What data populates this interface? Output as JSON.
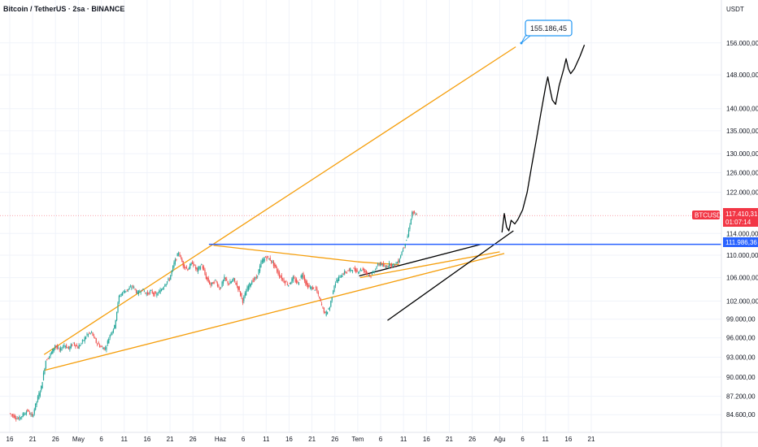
{
  "header": {
    "title": "Bitcoin / TetherUS · 2sa · BINANCE"
  },
  "axis": {
    "currency": "USDT"
  },
  "colors": {
    "up": "#26a69a",
    "down": "#ef5350",
    "orange": "#f59e0b",
    "blue": "#2962ff",
    "black": "#000000",
    "price_badge": "#f23645",
    "callout": "#2196f3",
    "grid": "#f0f3fa"
  },
  "chart_data": {
    "type": "candlestick",
    "y_scale": "log",
    "ylim": [
      83500,
      163000
    ],
    "xlim": [
      0,
      109
    ],
    "x_ticks": [
      {
        "x": 0,
        "label": "16"
      },
      {
        "x": 5,
        "label": "21"
      },
      {
        "x": 10,
        "label": "26"
      },
      {
        "x": 15,
        "label": "May"
      },
      {
        "x": 20,
        "label": "6"
      },
      {
        "x": 25,
        "label": "11"
      },
      {
        "x": 30,
        "label": "16"
      },
      {
        "x": 35,
        "label": "21"
      },
      {
        "x": 40,
        "label": "26"
      },
      {
        "x": 46,
        "label": "Haz"
      },
      {
        "x": 51,
        "label": "6"
      },
      {
        "x": 56,
        "label": "11"
      },
      {
        "x": 61,
        "label": "16"
      },
      {
        "x": 66,
        "label": "21"
      },
      {
        "x": 71,
        "label": "26"
      },
      {
        "x": 76,
        "label": "Tem"
      },
      {
        "x": 81,
        "label": "6"
      },
      {
        "x": 86,
        "label": "11"
      },
      {
        "x": 91,
        "label": "16"
      },
      {
        "x": 96,
        "label": "21"
      },
      {
        "x": 101,
        "label": "26"
      },
      {
        "x": 107,
        "label": "Ağu"
      }
    ],
    "x_ticks_extra": [
      {
        "x": 112,
        "label": "6"
      },
      {
        "x": 117,
        "label": "11"
      },
      {
        "x": 122,
        "label": "16"
      },
      {
        "x": 127,
        "label": "21"
      }
    ],
    "y_ticks": [
      "156.000,00",
      "148.000,00",
      "140.000,00",
      "135.000,00",
      "130.000,00",
      "126.000,00",
      "122.000,00",
      "114.000,00",
      "110.000,00",
      "106.000,00",
      "102.000,00",
      "99.000,00",
      "96.000,00",
      "93.000,00",
      "90.000,00",
      "87.200,00",
      "84.600,00"
    ],
    "y_tick_values": [
      156000,
      148000,
      140000,
      135000,
      130000,
      126000,
      122000,
      114000,
      110000,
      106000,
      102000,
      99000,
      96000,
      93000,
      90000,
      87200,
      84600
    ],
    "closes": [
      {
        "x": 0,
        "y": 84800
      },
      {
        "x": 2,
        "y": 84000
      },
      {
        "x": 4,
        "y": 85200
      },
      {
        "x": 5,
        "y": 84300
      },
      {
        "x": 6,
        "y": 86500
      },
      {
        "x": 7,
        "y": 88500
      },
      {
        "x": 8,
        "y": 92500
      },
      {
        "x": 9,
        "y": 93400
      },
      {
        "x": 10,
        "y": 94800
      },
      {
        "x": 11,
        "y": 94000
      },
      {
        "x": 12,
        "y": 94900
      },
      {
        "x": 13,
        "y": 94300
      },
      {
        "x": 14,
        "y": 95200
      },
      {
        "x": 15,
        "y": 94500
      },
      {
        "x": 16,
        "y": 95400
      },
      {
        "x": 17,
        "y": 96500
      },
      {
        "x": 18,
        "y": 96800
      },
      {
        "x": 19,
        "y": 95300
      },
      {
        "x": 20,
        "y": 94600
      },
      {
        "x": 21,
        "y": 94300
      },
      {
        "x": 22,
        "y": 96500
      },
      {
        "x": 23,
        "y": 97800
      },
      {
        "x": 24,
        "y": 102800
      },
      {
        "x": 25,
        "y": 103600
      },
      {
        "x": 26,
        "y": 104000
      },
      {
        "x": 27,
        "y": 104500
      },
      {
        "x": 28,
        "y": 103300
      },
      {
        "x": 29,
        "y": 104000
      },
      {
        "x": 30,
        "y": 103200
      },
      {
        "x": 31,
        "y": 103600
      },
      {
        "x": 32,
        "y": 103000
      },
      {
        "x": 33,
        "y": 103700
      },
      {
        "x": 34,
        "y": 104900
      },
      {
        "x": 35,
        "y": 105800
      },
      {
        "x": 36,
        "y": 108500
      },
      {
        "x": 37,
        "y": 110500
      },
      {
        "x": 38,
        "y": 108200
      },
      {
        "x": 39,
        "y": 107500
      },
      {
        "x": 40,
        "y": 108700
      },
      {
        "x": 41,
        "y": 107200
      },
      {
        "x": 42,
        "y": 108300
      },
      {
        "x": 43,
        "y": 106000
      },
      {
        "x": 44,
        "y": 104700
      },
      {
        "x": 45,
        "y": 105500
      },
      {
        "x": 46,
        "y": 104100
      },
      {
        "x": 47,
        "y": 105900
      },
      {
        "x": 48,
        "y": 104900
      },
      {
        "x": 49,
        "y": 105700
      },
      {
        "x": 50,
        "y": 104200
      },
      {
        "x": 51,
        "y": 102000
      },
      {
        "x": 52,
        "y": 104200
      },
      {
        "x": 53,
        "y": 105400
      },
      {
        "x": 54,
        "y": 106000
      },
      {
        "x": 55,
        "y": 108600
      },
      {
        "x": 56,
        "y": 109700
      },
      {
        "x": 57,
        "y": 109200
      },
      {
        "x": 58,
        "y": 108000
      },
      {
        "x": 59,
        "y": 106400
      },
      {
        "x": 60,
        "y": 105400
      },
      {
        "x": 61,
        "y": 104800
      },
      {
        "x": 62,
        "y": 105900
      },
      {
        "x": 63,
        "y": 105000
      },
      {
        "x": 64,
        "y": 106700
      },
      {
        "x": 65,
        "y": 104600
      },
      {
        "x": 66,
        "y": 104200
      },
      {
        "x": 67,
        "y": 104000
      },
      {
        "x": 68,
        "y": 101800
      },
      {
        "x": 69,
        "y": 99800
      },
      {
        "x": 70,
        "y": 101000
      },
      {
        "x": 71,
        "y": 104800
      },
      {
        "x": 72,
        "y": 106000
      },
      {
        "x": 73,
        "y": 106800
      },
      {
        "x": 74,
        "y": 107200
      },
      {
        "x": 75,
        "y": 107500
      },
      {
        "x": 76,
        "y": 107100
      },
      {
        "x": 77,
        "y": 107500
      },
      {
        "x": 78,
        "y": 106900
      },
      {
        "x": 79,
        "y": 106300
      },
      {
        "x": 80,
        "y": 107700
      },
      {
        "x": 81,
        "y": 108600
      },
      {
        "x": 82,
        "y": 107800
      },
      {
        "x": 83,
        "y": 108400
      },
      {
        "x": 84,
        "y": 108200
      },
      {
        "x": 85,
        "y": 108900
      },
      {
        "x": 86,
        "y": 111200
      },
      {
        "x": 87,
        "y": 113500
      },
      {
        "x": 88,
        "y": 118000
      },
      {
        "x": 89,
        "y": 117400
      }
    ],
    "last_price": "117.410,31",
    "countdown": "01:07:14",
    "symbol": "BTCUSDT",
    "hline_label": "111.986,36",
    "target_label": "155.186,45"
  }
}
